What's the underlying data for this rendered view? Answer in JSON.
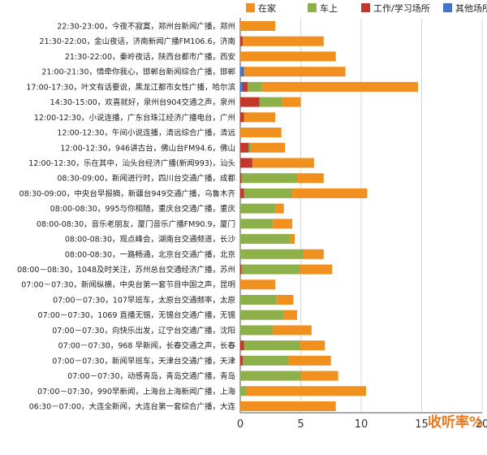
{
  "chart_data": {
    "type": "bar",
    "orientation": "horizontal",
    "stacked": true,
    "xlabel": "收听率%",
    "xlim": [
      0,
      20
    ],
    "ticks": [
      0,
      5,
      10,
      15,
      20
    ],
    "grid": true,
    "legend_position": "top",
    "categories": [
      "22:30-23:00，今夜不寂寞，郑州台新闻广播，郑州",
      "21:30-22:00，金山夜话，济南新闻广播FM106.6，济南",
      "21:30-22:00，秦岭夜话，陕西台都市广播，西安",
      "21:00-21:30，情牵你我心，邯郸台新闻综合广播，邯郸",
      "17:00-17:30，叶文有话要说，黑龙江都市女性广播，哈尔滨",
      "14:30-15:00，欢喜就好，泉州台904交通之声，泉州",
      "12:00-12:30，小说连播，广东台珠江经济广播电台，广州",
      "12:00-12:30，午间小说连播，清远综合广播，清远",
      "12:00-12:30，946讲古台，佛山台FM94.6，佛山",
      "12:00-12:30，乐在其中，汕头台经济广播(新闻993)，汕头",
      "08:30-09:00，新闻进行时，四川台交通广播，成都",
      "08:30-09:00，中央台早报摘，新疆台949交通广播，乌鲁木齐",
      "08:00-08:30，995与你相随，重庆台交通广播，重庆",
      "08:00-08:30，音乐老朋友，厦门音乐广播FM90.9，厦门",
      "08:00-08:30，观点峰会，湖南台交通频道，长沙",
      "08:00-08:30，一路畅通，北京台交通广播，北京",
      "08:00－08:30，1048及时关注，苏州总台交通经济广播，苏州",
      "07:00－07:30，新闻纵横，中央台第一套节目中国之声，昆明",
      "07:00－07:30，107早班车，太原台交通频率，太原",
      "07:00－07:30，1069 直播无锡，无锡台交通广播，无锡",
      "07:00－07:30，向快乐出发，辽宁台交通广播，沈阳",
      "07:00－07:30，968 早新闻，长春交通之声，长春",
      "07:00－07:30，新闻早班车，天津台交通广播，天津",
      "07:00－07:30，动感青岛，青岛交通广播，青岛",
      "07:00－07:30，990早新闻，上海台上海新闻广播，上海",
      "06:30－07:00，大连全新闻，大连台第一套综合广播，大连"
    ],
    "series": [
      {
        "name": "其他场所",
        "color": "#4472c4",
        "values": [
          0,
          0,
          0,
          0.3,
          0.2,
          0,
          0,
          0,
          0,
          0,
          0,
          0,
          0,
          0,
          0,
          0,
          0,
          0,
          0,
          0,
          0,
          0,
          0,
          0,
          0,
          0
        ]
      },
      {
        "name": "工作/学习场所",
        "color": "#c0392b",
        "values": [
          0,
          0.2,
          0,
          0,
          0.4,
          1.6,
          0.3,
          0,
          0.7,
          1.0,
          0.1,
          0.3,
          0,
          0,
          0,
          0,
          0.1,
          0,
          0,
          0,
          0,
          0.3,
          0.2,
          0,
          0,
          0
        ]
      },
      {
        "name": "车上",
        "color": "#8db04a",
        "values": [
          0,
          0,
          0,
          0,
          1.2,
          1.9,
          0,
          0,
          0.2,
          0,
          4.6,
          4.0,
          2.9,
          2.7,
          4.1,
          5.2,
          4.8,
          0,
          3.0,
          3.6,
          2.7,
          4.6,
          3.8,
          5.0,
          0.5,
          0
        ]
      },
      {
        "name": "在家",
        "color": "#f0901f",
        "values": [
          2.9,
          6.7,
          7.9,
          8.4,
          12.9,
          1.5,
          2.6,
          3.4,
          2.8,
          5.1,
          2.2,
          6.2,
          0.7,
          1.6,
          0.4,
          1.7,
          2.7,
          2.9,
          1.4,
          1.1,
          3.2,
          2.1,
          3.5,
          3.1,
          9.9,
          7.9
        ]
      }
    ],
    "legend_order": [
      "在家",
      "车上",
      "工作/学习场所",
      "其他场所"
    ]
  }
}
